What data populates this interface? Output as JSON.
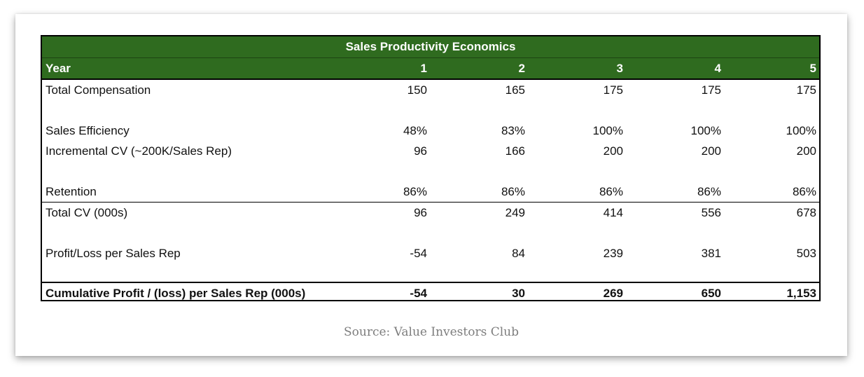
{
  "table": {
    "title": "Sales Productivity Economics",
    "header": [
      "Year",
      "1",
      "2",
      "3",
      "4",
      "5"
    ],
    "rows": [
      {
        "label": "Total Compensation",
        "values": [
          "150",
          "165",
          "175",
          "175",
          "175"
        ]
      },
      {
        "label": "Sales Efficiency",
        "values": [
          "48%",
          "83%",
          "100%",
          "100%",
          "100%"
        ]
      },
      {
        "label": "Incremental CV (~200K/Sales Rep)",
        "values": [
          "96",
          "166",
          "200",
          "200",
          "200"
        ]
      },
      {
        "label": "Retention",
        "values": [
          "86%",
          "86%",
          "86%",
          "86%",
          "86%"
        ]
      },
      {
        "label": "Total CV (000s)",
        "values": [
          "96",
          "249",
          "414",
          "556",
          "678"
        ]
      },
      {
        "label": "Profit/Loss per Sales Rep",
        "values": [
          "-54",
          "84",
          "239",
          "381",
          "503"
        ]
      },
      {
        "label": "Cumulative Profit / (loss) per Sales Rep (000s)",
        "values": [
          "-54",
          "30",
          "269",
          "650",
          "1,153"
        ]
      }
    ]
  },
  "source": "Source: Value Investors Club",
  "colors": {
    "header_green": "#2f6b1f",
    "source_gray": "#7d7d7d"
  }
}
